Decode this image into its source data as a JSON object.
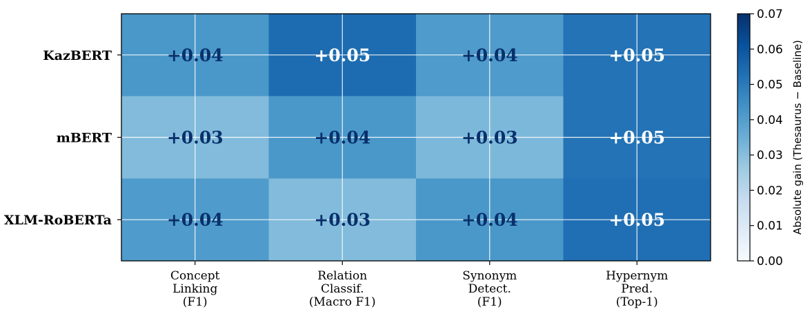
{
  "chart_data": {
    "type": "heatmap",
    "title": "",
    "rows": [
      "KazBERT",
      "mBERT",
      "XLM-RoBERTa"
    ],
    "columns": [
      [
        "Concept",
        "Linking",
        "(F1)"
      ],
      [
        "Relation",
        "Classif.",
        "(Macro F1)"
      ],
      [
        "Synonym",
        "Detect.",
        "(F1)"
      ],
      [
        "Hypernym",
        "Pred.",
        "(Top-1)"
      ]
    ],
    "values": [
      [
        0.042,
        0.054,
        0.041,
        0.052
      ],
      [
        0.031,
        0.042,
        0.032,
        0.052
      ],
      [
        0.041,
        0.031,
        0.042,
        0.053
      ]
    ],
    "cell_labels": [
      [
        "+0.04",
        "+0.05",
        "+0.04",
        "+0.05"
      ],
      [
        "+0.03",
        "+0.04",
        "+0.03",
        "+0.05"
      ],
      [
        "+0.04",
        "+0.03",
        "+0.04",
        "+0.05"
      ]
    ],
    "colorbar": {
      "label": "Absolute gain (Thesaurus − Baseline)",
      "range": [
        0.0,
        0.07
      ],
      "ticks": [
        "0.00",
        "0.01",
        "0.02",
        "0.03",
        "0.04",
        "0.05",
        "0.06",
        "0.07"
      ],
      "colormap": "Blues",
      "colors": [
        "#f7fbff",
        "#deebf7",
        "#c6dbef",
        "#9ecae1",
        "#6baed6",
        "#4292c6",
        "#2171b5",
        "#08519c",
        "#08306b"
      ]
    },
    "grid": true,
    "grid_color": "#ffffff",
    "label_colors": {
      "dark": "#08306b",
      "light": "#ffffff"
    }
  }
}
